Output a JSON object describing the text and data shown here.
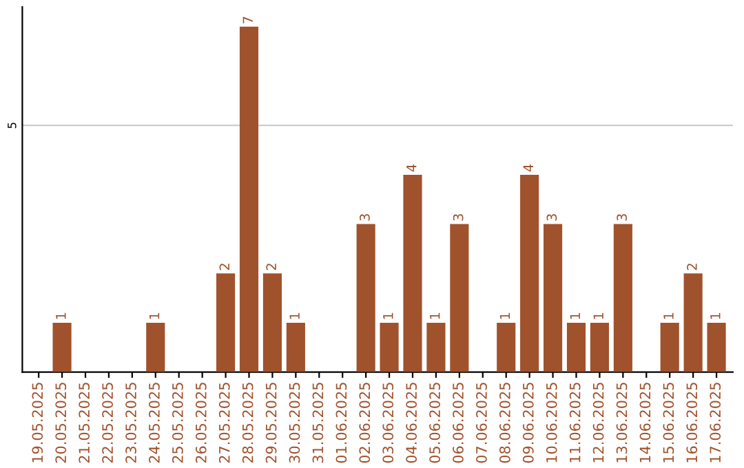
{
  "chart_data": {
    "type": "bar",
    "categories": [
      "19.05.2025",
      "20.05.2025",
      "21.05.2025",
      "22.05.2025",
      "23.05.2025",
      "24.05.2025",
      "25.05.2025",
      "26.05.2025",
      "27.05.2025",
      "28.05.2025",
      "29.05.2025",
      "30.05.2025",
      "31.05.2025",
      "01.06.2025",
      "02.06.2025",
      "03.06.2025",
      "04.06.2025",
      "05.06.2025",
      "06.06.2025",
      "07.06.2025",
      "08.06.2025",
      "09.06.2025",
      "10.06.2025",
      "11.06.2025",
      "12.06.2025",
      "13.06.2025",
      "14.06.2025",
      "15.06.2025",
      "16.06.2025",
      "17.06.2025"
    ],
    "values": [
      0,
      1,
      0,
      0,
      0,
      1,
      0,
      0,
      2,
      7,
      2,
      1,
      0,
      0,
      3,
      1,
      4,
      1,
      3,
      0,
      1,
      4,
      3,
      1,
      1,
      3,
      0,
      1,
      2,
      1
    ],
    "value_labels": [
      null,
      "1",
      null,
      null,
      null,
      "1",
      null,
      null,
      "2",
      "7",
      "2",
      "1",
      null,
      null,
      "3",
      "1",
      "4",
      "1",
      "3",
      null,
      "1",
      "4",
      "3",
      "1",
      "1",
      "3",
      null,
      "1",
      "2",
      "1"
    ],
    "color": "#a0522d",
    "ylim": [
      0,
      7.4
    ],
    "yticks": [
      5
    ],
    "grid": "y"
  }
}
